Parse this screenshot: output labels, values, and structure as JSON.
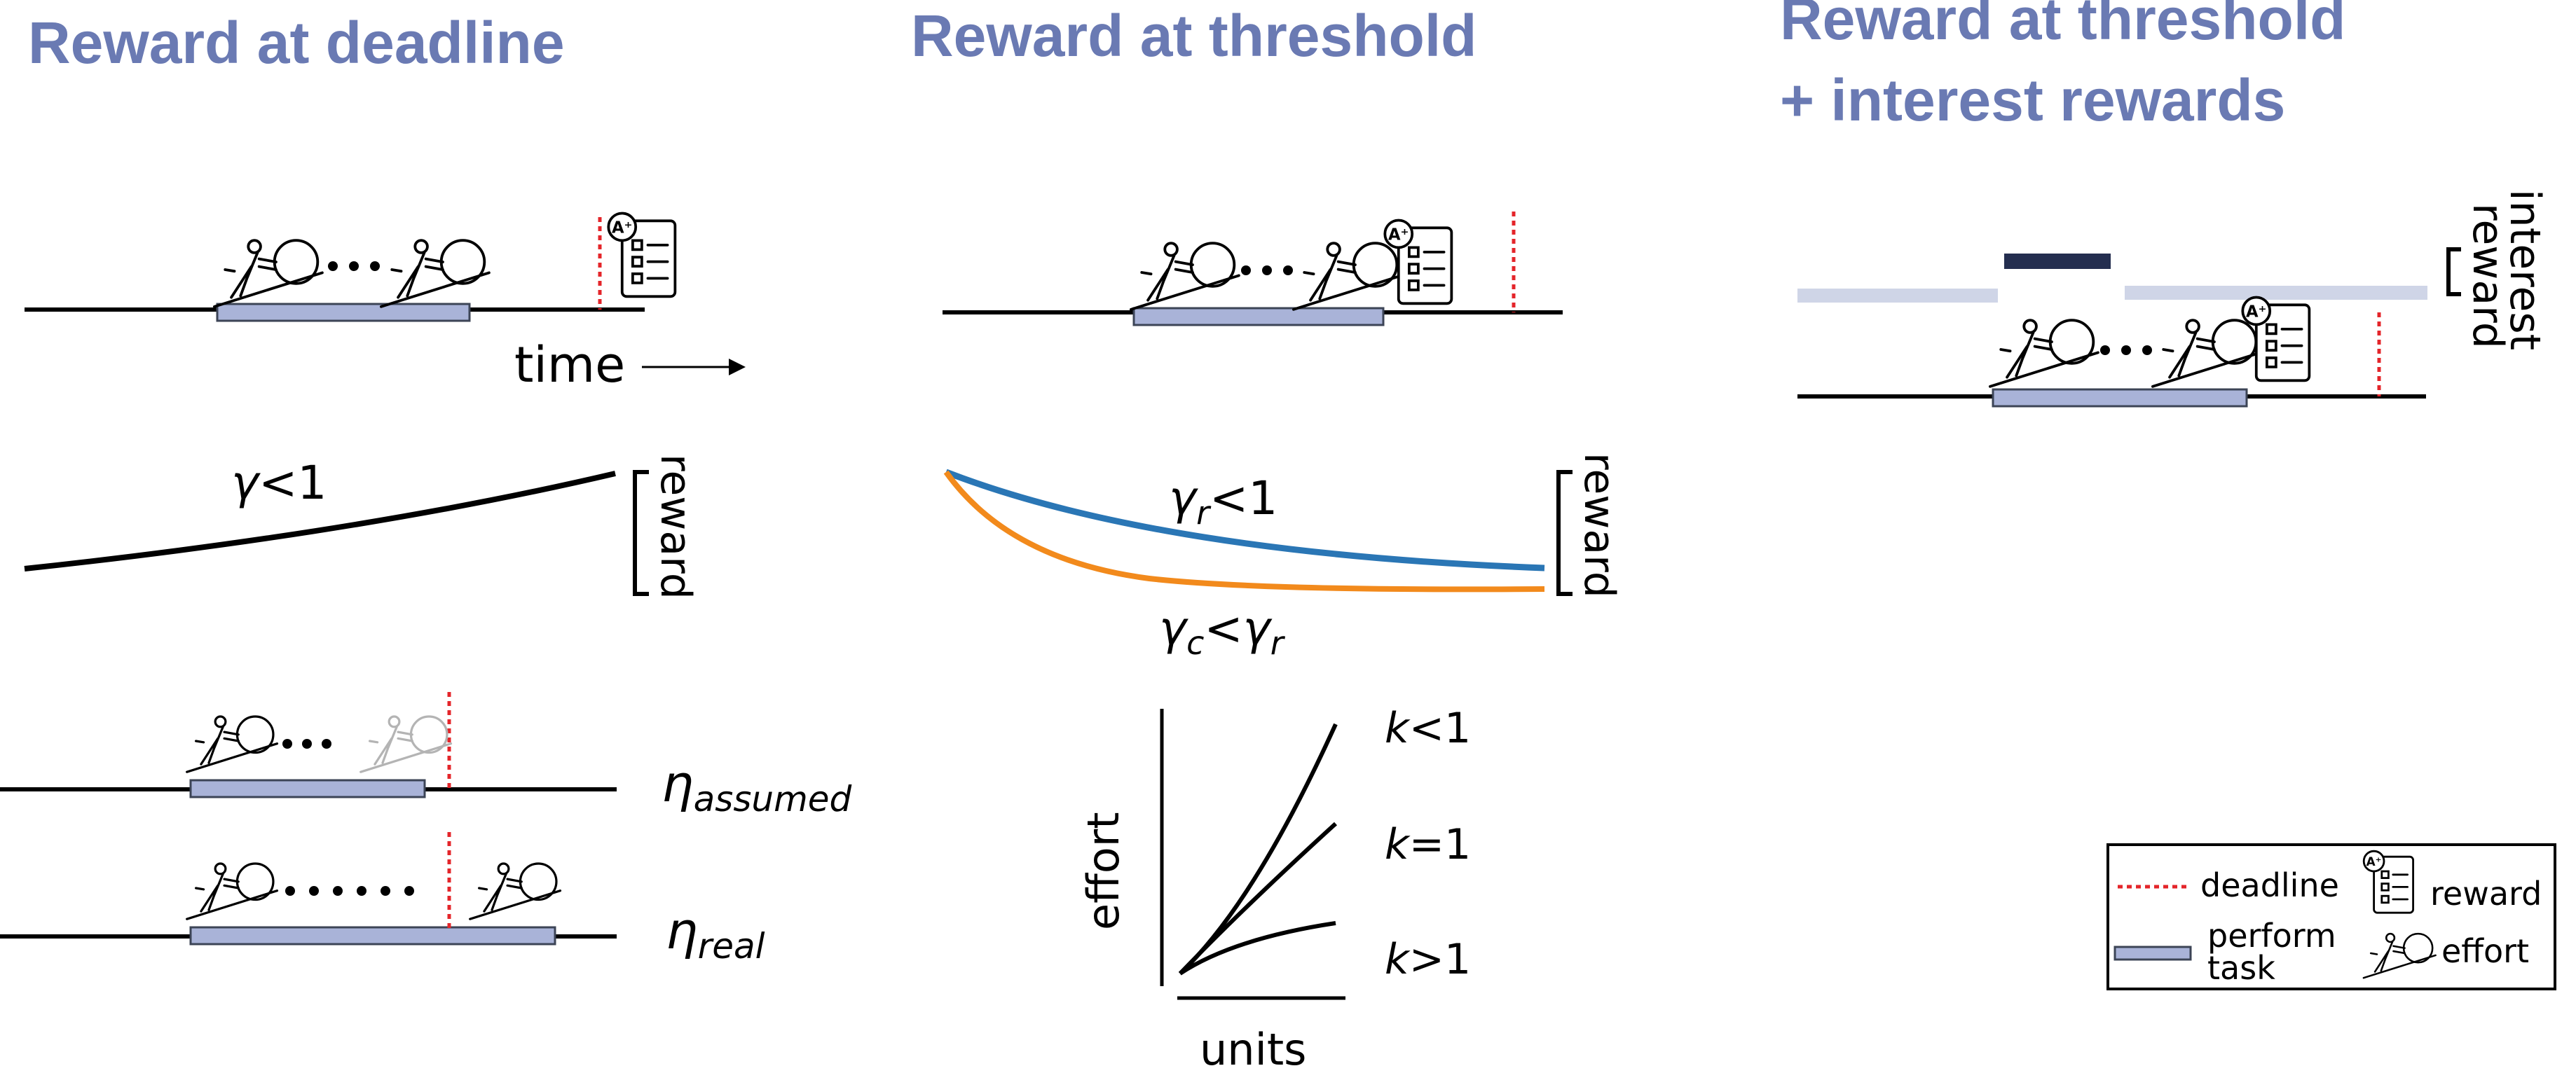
{
  "panels": [
    {
      "title_lines": [
        "Reward at deadline"
      ]
    },
    {
      "title_lines": [
        "Reward at threshold"
      ]
    },
    {
      "title_lines": [
        "Reward at threshold",
        "+  interest rewards"
      ]
    }
  ],
  "labels": {
    "time": "time",
    "reward": "reward",
    "interest_reward": [
      "interest",
      "reward"
    ],
    "gamma": {
      "sym": "γ",
      "rest": "<1"
    },
    "gamma_r": {
      "sym": "γ",
      "sub": "r",
      "rest": "<1"
    },
    "gamma_c": {
      "sym": "γ",
      "sub": "c",
      "op": "<",
      "sym2": "γ",
      "sub2": "r"
    },
    "eta_assumed": {
      "sym": "η",
      "sub": "assumed"
    },
    "eta_real": {
      "sym": "η",
      "sub": "real"
    },
    "effort_axis": "effort",
    "units_axis": "units",
    "k_curves": [
      {
        "sym": "k",
        "rest": "<1"
      },
      {
        "sym": "k",
        "rest": "=1"
      },
      {
        "sym": "k",
        "rest": ">1"
      }
    ]
  },
  "legend": {
    "deadline": "deadline",
    "perform": "perform",
    "task": "task",
    "reward": "reward",
    "effort": "effort"
  },
  "colors": {
    "title": "#6a7ab3",
    "task_fill": "#a9b3d8",
    "deadline": "#e4252a",
    "gamma_r_curve": "#2a76b5",
    "gamma_c_curve": "#f28a1c",
    "interest_high": "#242e4f",
    "interest_low": "#cfd5e7"
  },
  "icons": [
    "sisyphus-effort-icon",
    "reward-document-icon"
  ]
}
